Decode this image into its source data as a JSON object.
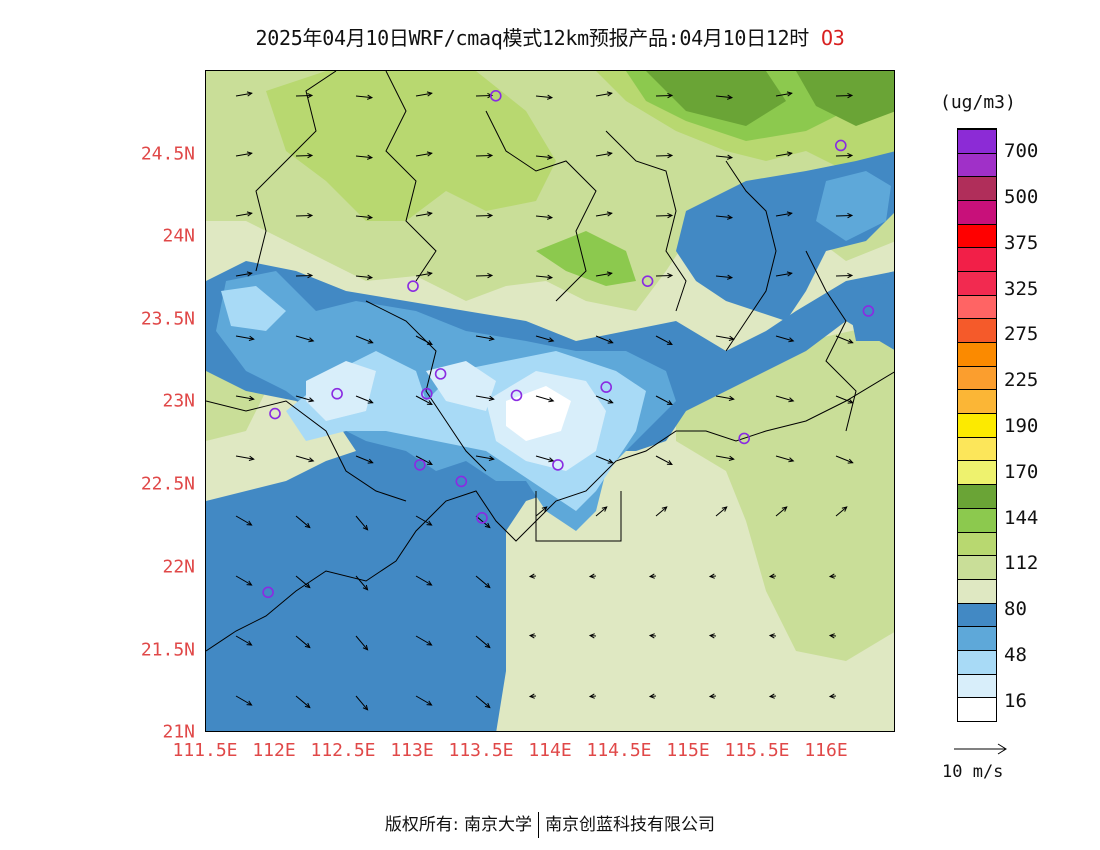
{
  "title": {
    "main": "2025年04月10日WRF/cmaq模式12km预报产品:04月10日12时",
    "species": "O3",
    "species_color": "#d82020"
  },
  "map": {
    "lon_range": [
      111.5,
      116.5
    ],
    "lat_range": [
      21.0,
      25.0
    ],
    "lat_labels": [
      "21N",
      "21.5N",
      "22N",
      "22.5N",
      "23N",
      "23.5N",
      "24N",
      "24.5N"
    ],
    "lon_labels": [
      "111.5E",
      "112E",
      "112.5E",
      "113E",
      "113.5E",
      "114E",
      "114.5E",
      "115E",
      "115.5E",
      "116E"
    ],
    "axis_label_color": "#e04848",
    "station_marker_color": "#8a2be2",
    "wind_direction_note": "arrows point toward the east in the north, east-southeast in the center, and westward over the sea in the south",
    "stations": [
      {
        "lon": 113.6,
        "lat": 24.85
      },
      {
        "lon": 116.1,
        "lat": 24.55
      },
      {
        "lon": 113.0,
        "lat": 23.7
      },
      {
        "lon": 114.7,
        "lat": 23.73
      },
      {
        "lon": 116.3,
        "lat": 23.55
      },
      {
        "lon": 112.45,
        "lat": 23.05
      },
      {
        "lon": 113.1,
        "lat": 23.05
      },
      {
        "lon": 113.2,
        "lat": 23.17
      },
      {
        "lon": 113.75,
        "lat": 23.04
      },
      {
        "lon": 114.4,
        "lat": 23.09
      },
      {
        "lon": 112.0,
        "lat": 22.93
      },
      {
        "lon": 115.4,
        "lat": 22.78
      },
      {
        "lon": 113.05,
        "lat": 22.62
      },
      {
        "lon": 113.35,
        "lat": 22.52
      },
      {
        "lon": 114.05,
        "lat": 22.62
      },
      {
        "lon": 113.5,
        "lat": 22.3
      },
      {
        "lon": 111.95,
        "lat": 21.85
      }
    ]
  },
  "colorbar": {
    "unit": "(ug/m3)",
    "colors": [
      "#ffffff",
      "#d8eefa",
      "#a8daf6",
      "#5ea8d9",
      "#4289c4",
      "#dfe8c2",
      "#c9de98",
      "#b8d870",
      "#8cc94e",
      "#6aa436",
      "#eef26e",
      "#fce65a",
      "#fcea00",
      "#fbb636",
      "#fb9e2e",
      "#fb8a00",
      "#f55a2a",
      "#ff6464",
      "#f22a50",
      "#f21f48",
      "#ff0000",
      "#c8107a",
      "#b02e5a",
      "#a030c8",
      "#8c2bd6"
    ],
    "tick_labels": [
      "16",
      "48",
      "80",
      "112",
      "144",
      "170",
      "190",
      "225",
      "275",
      "325",
      "375",
      "500",
      "700"
    ]
  },
  "wind_key": {
    "label": "10 m/s"
  },
  "footer": {
    "copyright_prefix": "版权所有: 南京大学",
    "copyright_suffix": "南京创蓝科技有限公司"
  }
}
